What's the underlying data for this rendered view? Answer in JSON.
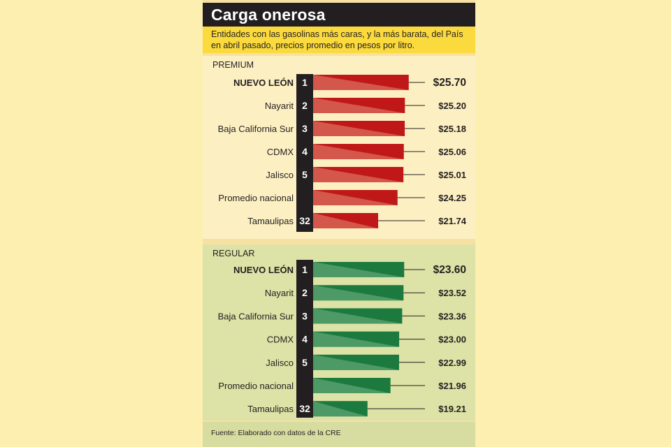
{
  "header": {
    "title": "Carga onerosa",
    "subtitle": "Entidades con las gasolinas más caras, y la más barata, del País en abril pasado, precios promedio en pesos por litro."
  },
  "footer": {
    "source": "Fuente: Elaborado con datos de la CRE"
  },
  "chart_data": [
    {
      "type": "bar",
      "label": "PREMIUM",
      "categories": [
        "NUEVO LEÓN",
        "Nayarit",
        "Baja California Sur",
        "CDMX",
        "Jalisco",
        "Promedio nacional",
        "Tamaulipas"
      ],
      "ranks": [
        "1",
        "2",
        "3",
        "4",
        "5",
        "",
        "32"
      ],
      "values": [
        25.7,
        25.2,
        25.18,
        25.06,
        25.01,
        24.25,
        21.74
      ],
      "value_labels": [
        "$25.70",
        "$25.20",
        "$25.18",
        "$25.06",
        "$25.01",
        "$24.25",
        "$21.74"
      ],
      "highlight_color": "#b71c1c",
      "bar_color": "#c01818",
      "bar_light": "#d4574b"
    },
    {
      "type": "bar",
      "label": "REGULAR",
      "categories": [
        "NUEVO LEÓN",
        "Nayarit",
        "Baja California Sur",
        "CDMX",
        "Jalisco",
        "Promedio nacional",
        "Tamaulipas"
      ],
      "ranks": [
        "1",
        "2",
        "3",
        "4",
        "5",
        "",
        "32"
      ],
      "values": [
        23.6,
        23.52,
        23.36,
        23.0,
        22.99,
        21.96,
        19.21
      ],
      "value_labels": [
        "$23.60",
        "$23.52",
        "$23.36",
        "$23.00",
        "$22.99",
        "$21.96",
        "$19.21"
      ],
      "highlight_color": "#1e7a3c",
      "bar_color": "#1d7a3f",
      "bar_light": "#4d9a66"
    }
  ]
}
